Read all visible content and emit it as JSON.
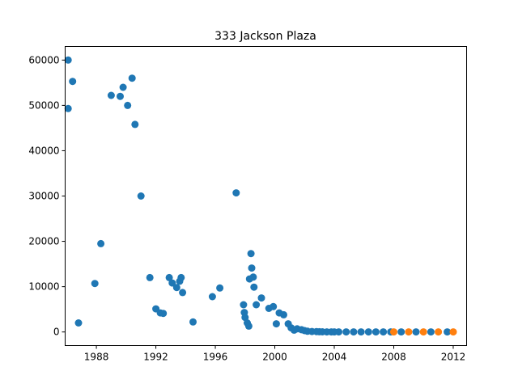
{
  "chart_data": {
    "type": "scatter",
    "title": "333 Jackson Plaza",
    "xlabel": "",
    "ylabel": "",
    "xlim": [
      1985.9,
      2012.9
    ],
    "ylim": [
      -3000,
      63000
    ],
    "x_ticks": [
      {
        "value": 1988,
        "label": "1988"
      },
      {
        "value": 1992,
        "label": "1992"
      },
      {
        "value": 1996,
        "label": "1996"
      },
      {
        "value": 2000,
        "label": "2000"
      },
      {
        "value": 2004,
        "label": "2004"
      },
      {
        "value": 2008,
        "label": "2008"
      },
      {
        "value": 2012,
        "label": "2012"
      }
    ],
    "y_ticks": [
      {
        "value": 0,
        "label": "0"
      },
      {
        "value": 10000,
        "label": "10000"
      },
      {
        "value": 20000,
        "label": "20000"
      },
      {
        "value": 30000,
        "label": "30000"
      },
      {
        "value": 40000,
        "label": "40000"
      },
      {
        "value": 50000,
        "label": "50000"
      },
      {
        "value": 60000,
        "label": "60000"
      }
    ],
    "grid": false,
    "legend": "none",
    "series": [
      {
        "color": "#1f77b4",
        "points": [
          [
            1986.1,
            60000
          ],
          [
            1986.1,
            49300
          ],
          [
            1986.4,
            55300
          ],
          [
            1986.8,
            2000
          ],
          [
            1987.9,
            10700
          ],
          [
            1988.3,
            19500
          ],
          [
            1989.0,
            52200
          ],
          [
            1989.6,
            52000
          ],
          [
            1989.8,
            54000
          ],
          [
            1990.1,
            50000
          ],
          [
            1990.4,
            56000
          ],
          [
            1990.6,
            45800
          ],
          [
            1991.0,
            30000
          ],
          [
            1991.6,
            12000
          ],
          [
            1992.0,
            5100
          ],
          [
            1992.3,
            4200
          ],
          [
            1992.5,
            4100
          ],
          [
            1992.9,
            12000
          ],
          [
            1993.1,
            10800
          ],
          [
            1993.4,
            9800
          ],
          [
            1993.6,
            11200
          ],
          [
            1993.7,
            12000
          ],
          [
            1993.8,
            8700
          ],
          [
            1994.5,
            2200
          ],
          [
            1995.8,
            7800
          ],
          [
            1996.3,
            9700
          ],
          [
            1997.4,
            30700
          ],
          [
            1997.9,
            6000
          ],
          [
            1997.95,
            4300
          ],
          [
            1998.0,
            3200
          ],
          [
            1998.15,
            2000
          ],
          [
            1998.25,
            1300
          ],
          [
            1998.3,
            11700
          ],
          [
            1998.4,
            17300
          ],
          [
            1998.45,
            14100
          ],
          [
            1998.55,
            12100
          ],
          [
            1998.6,
            9900
          ],
          [
            1998.75,
            6000
          ],
          [
            1999.1,
            7500
          ],
          [
            1999.6,
            5200
          ],
          [
            1999.9,
            5600
          ],
          [
            2000.1,
            1800
          ],
          [
            2000.3,
            4200
          ],
          [
            2000.6,
            3800
          ],
          [
            2000.9,
            1800
          ],
          [
            2001.1,
            900
          ],
          [
            2001.3,
            400
          ],
          [
            2001.5,
            700
          ],
          [
            2001.8,
            500
          ],
          [
            2002.0,
            300
          ],
          [
            2002.2,
            150
          ],
          [
            2002.5,
            100
          ],
          [
            2002.8,
            80
          ],
          [
            2003.0,
            50
          ],
          [
            2003.2,
            30
          ],
          [
            2003.5,
            20
          ],
          [
            2003.8,
            10
          ],
          [
            2004.0,
            10
          ],
          [
            2004.3,
            10
          ],
          [
            2004.8,
            10
          ],
          [
            2005.3,
            10
          ],
          [
            2005.8,
            10
          ],
          [
            2006.3,
            10
          ],
          [
            2006.8,
            10
          ],
          [
            2007.3,
            10
          ],
          [
            2007.8,
            10
          ],
          [
            2008.5,
            10
          ],
          [
            2009.5,
            10
          ],
          [
            2010.5,
            10
          ],
          [
            2011.6,
            10
          ]
        ]
      },
      {
        "color": "#ff7f0e",
        "points": [
          [
            2008.0,
            10
          ],
          [
            2009.0,
            10
          ],
          [
            2010.0,
            10
          ],
          [
            2011.0,
            10
          ],
          [
            2012.0,
            10
          ]
        ]
      }
    ]
  }
}
